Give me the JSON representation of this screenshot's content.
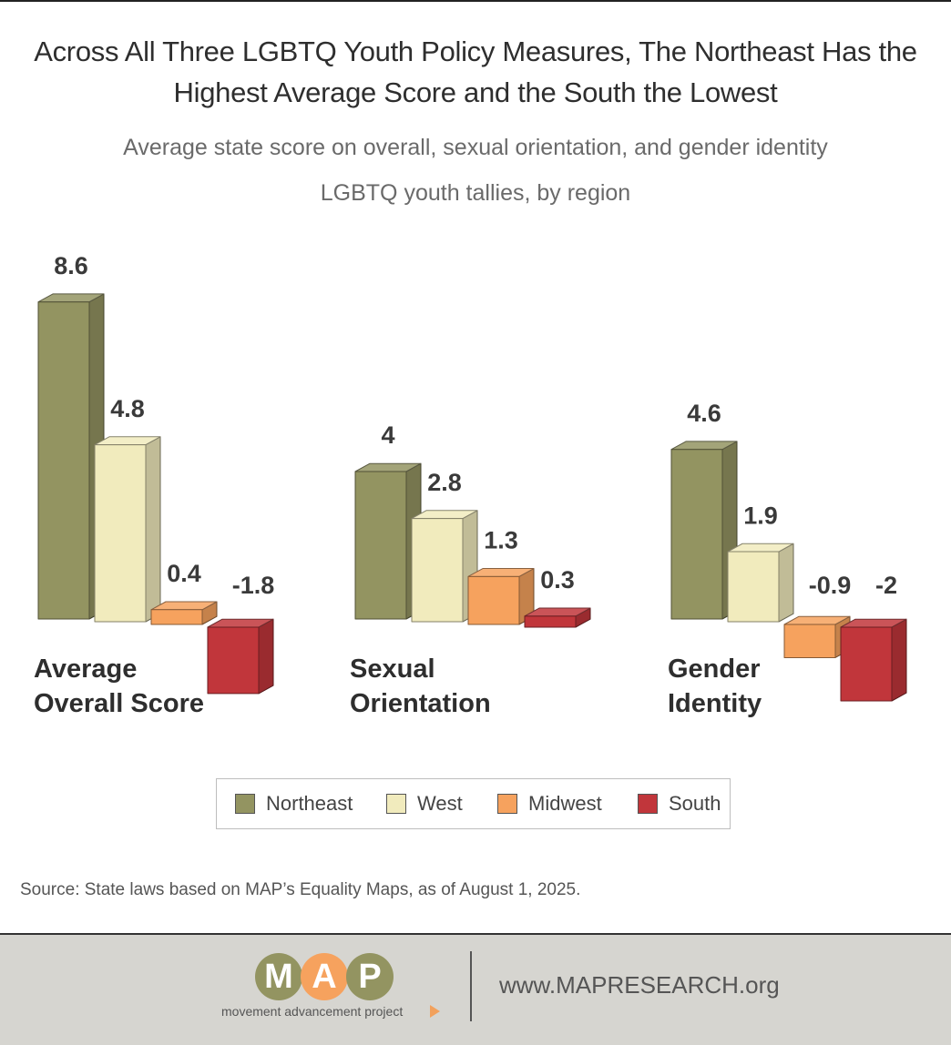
{
  "title": "Across All Three LGBTQ Youth Policy Measures, The Northeast Has the Highest Average Score and the South the Lowest",
  "subtitle": "Average state score on overall, sexual orientation, and gender identity LGBTQ youth tallies, by region",
  "source": "Source: State laws based on MAP’s Equality Maps, as of August 1, 2025.",
  "footer": {
    "logo_letters": [
      "M",
      "A",
      "P"
    ],
    "logo_tagline": "movement advancement project",
    "url": "www.MAPRESEARCH.org"
  },
  "legend": {
    "items": [
      {
        "label": "Northeast",
        "color": "#939461"
      },
      {
        "label": "West",
        "color": "#f1ebbd"
      },
      {
        "label": "Midwest",
        "color": "#f6a25e"
      },
      {
        "label": "South",
        "color": "#c1363b"
      }
    ]
  },
  "chart_data": {
    "type": "bar",
    "title": "Across All Three LGBTQ Youth Policy Measures, The Northeast Has the Highest Average Score and the South the Lowest",
    "subtitle": "Average state score on overall, sexual orientation, and gender identity LGBTQ youth tallies, by region",
    "categories": [
      "Average Overall Score",
      "Sexual Orientation",
      "Gender Identity"
    ],
    "category_display": [
      [
        "Average",
        "Overall Score"
      ],
      [
        "Sexual",
        "Orientation"
      ],
      [
        "Gender",
        "Identity"
      ]
    ],
    "series": [
      {
        "name": "Northeast",
        "values": [
          8.6,
          4,
          4.6
        ],
        "labels": [
          "8.6",
          "4",
          "4.6"
        ],
        "color": "#939461"
      },
      {
        "name": "West",
        "values": [
          4.8,
          2.8,
          1.9
        ],
        "labels": [
          "4.8",
          "2.8",
          "1.9"
        ],
        "color": "#f1ebbd"
      },
      {
        "name": "Midwest",
        "values": [
          0.4,
          1.3,
          -0.9
        ],
        "labels": [
          "0.4",
          "1.3",
          "-0.9"
        ],
        "color": "#f6a25e"
      },
      {
        "name": "South",
        "values": [
          -1.8,
          0.3,
          -2
        ],
        "labels": [
          "-1.8",
          "0.3",
          "-2"
        ],
        "color": "#c1363b"
      }
    ],
    "legend_position": "bottom-center",
    "grid": false,
    "style": "3d"
  }
}
